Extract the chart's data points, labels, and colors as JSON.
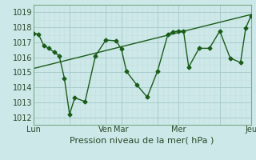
{
  "title": "",
  "xlabel": "Pression niveau de la mer( hPa )",
  "background_color": "#cce8e8",
  "grid_color_major": "#aacccc",
  "grid_color_minor": "#c8dede",
  "line_color": "#1a5c1a",
  "ylim": [
    1011.5,
    1019.5
  ],
  "xlim": [
    0,
    21
  ],
  "ytick_positions": [
    1012,
    1013,
    1014,
    1015,
    1016,
    1017,
    1018,
    1019
  ],
  "xtick_labels": [
    "Lun",
    "",
    "Ven",
    "Mar",
    "",
    "Mer",
    "",
    "Jeu"
  ],
  "xtick_positions": [
    0,
    3.5,
    7,
    8.5,
    12,
    14,
    18,
    21
  ],
  "vline_positions": [
    7,
    8.5,
    14,
    18
  ],
  "data_x": [
    0,
    0.5,
    1.0,
    1.5,
    2.0,
    2.5,
    3.0,
    3.5,
    4.0,
    5.0,
    6.0,
    7.0,
    8.0,
    8.5,
    9.0,
    10.0,
    11.0,
    12.0,
    13.0,
    13.5,
    14.0,
    14.5,
    15.0,
    16.0,
    17.0,
    18.0,
    19.0,
    20.0,
    20.5,
    21.0
  ],
  "data_y": [
    1017.6,
    1017.55,
    1016.8,
    1016.6,
    1016.35,
    1016.1,
    1014.6,
    1012.2,
    1013.3,
    1013.05,
    1016.1,
    1017.15,
    1017.1,
    1016.55,
    1015.05,
    1014.15,
    1013.35,
    1015.1,
    1017.55,
    1017.7,
    1017.75,
    1017.75,
    1015.35,
    1016.6,
    1016.6,
    1017.75,
    1015.95,
    1015.65,
    1017.95,
    1018.75
  ],
  "trend_x": [
    0,
    21
  ],
  "trend_y": [
    1015.25,
    1018.85
  ],
  "tick_fontsize": 7,
  "label_fontsize": 8
}
